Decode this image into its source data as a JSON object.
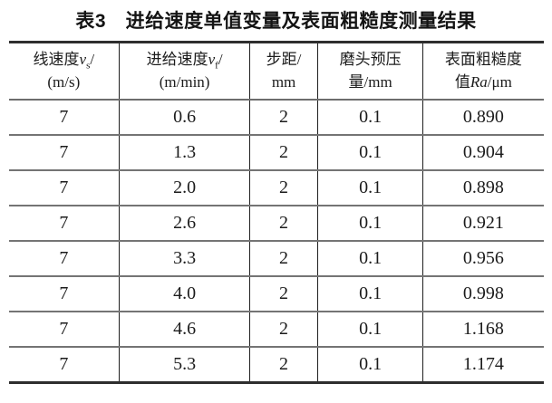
{
  "table_caption": "表3　进给速度单值变量及表面粗糙度测量结果",
  "table": {
    "columns": [
      {
        "name": "linear-speed",
        "width_pct": 20.7,
        "header_lines": [
          [
            {
              "t": "text",
              "v": "线速度"
            },
            {
              "t": "i",
              "v": "v"
            },
            {
              "t": "sub",
              "v": "s"
            },
            {
              "t": "text",
              "v": "/"
            }
          ],
          [
            {
              "t": "text",
              "v": "(m/s)"
            }
          ]
        ]
      },
      {
        "name": "feed-speed",
        "width_pct": 24.4,
        "header_lines": [
          [
            {
              "t": "text",
              "v": "进给速度"
            },
            {
              "t": "i",
              "v": "v"
            },
            {
              "t": "sub",
              "v": "f"
            },
            {
              "t": "text",
              "v": "/"
            }
          ],
          [
            {
              "t": "text",
              "v": "(m/min)"
            }
          ]
        ]
      },
      {
        "name": "step-distance",
        "width_pct": 12.7,
        "header_lines": [
          [
            {
              "t": "text",
              "v": "步距/"
            }
          ],
          [
            {
              "t": "text",
              "v": "mm"
            }
          ]
        ]
      },
      {
        "name": "head-preload",
        "width_pct": 19.7,
        "header_lines": [
          [
            {
              "t": "text",
              "v": "磨头预压"
            }
          ],
          [
            {
              "t": "text",
              "v": "量/mm"
            }
          ]
        ]
      },
      {
        "name": "surface-roughness",
        "width_pct": 22.5,
        "header_lines": [
          [
            {
              "t": "text",
              "v": "表面粗糙度"
            }
          ],
          [
            {
              "t": "text",
              "v": "值"
            },
            {
              "t": "i",
              "v": "Ra"
            },
            {
              "t": "text",
              "v": "/μm"
            }
          ]
        ]
      }
    ],
    "rows": [
      [
        "7",
        "0.6",
        "2",
        "0.1",
        "0.890"
      ],
      [
        "7",
        "1.3",
        "2",
        "0.1",
        "0.904"
      ],
      [
        "7",
        "2.0",
        "2",
        "0.1",
        "0.898"
      ],
      [
        "7",
        "2.6",
        "2",
        "0.1",
        "0.921"
      ],
      [
        "7",
        "3.3",
        "2",
        "0.1",
        "0.956"
      ],
      [
        "7",
        "4.0",
        "2",
        "0.1",
        "0.998"
      ],
      [
        "7",
        "4.6",
        "2",
        "0.1",
        "1.168"
      ],
      [
        "7",
        "5.3",
        "2",
        "0.1",
        "1.174"
      ]
    ]
  },
  "colors": {
    "background": "#ffffff",
    "text": "#1b1b1b",
    "rule_heavy": "#2e2e2e",
    "rule_light": "#747474",
    "column_divider": "#1f1f1f"
  }
}
